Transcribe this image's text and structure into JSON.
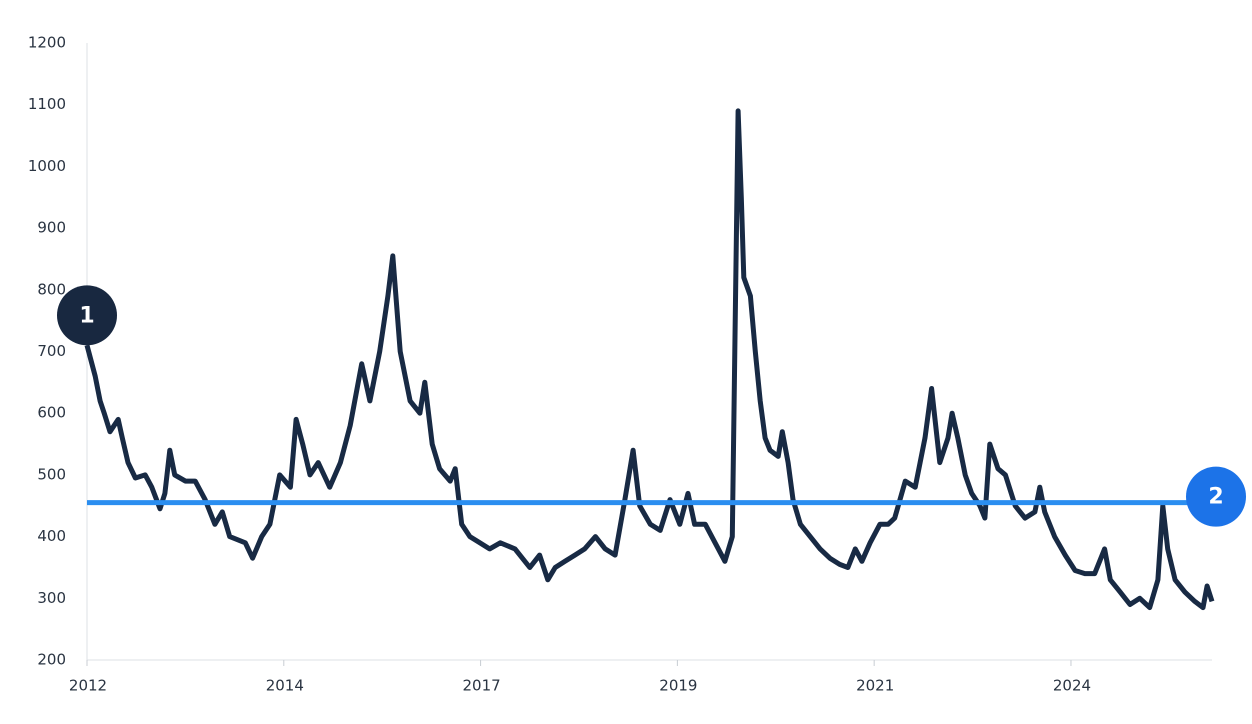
{
  "chart_data": {
    "type": "line",
    "x": [
      2012.0,
      2012.1,
      2012.16,
      2012.21,
      2012.28,
      2012.38,
      2012.43,
      2012.5,
      2012.59,
      2012.71,
      2012.79,
      2012.89,
      2012.95,
      2013.01,
      2013.07,
      2013.2,
      2013.32,
      2013.44,
      2013.56,
      2013.65,
      2013.74,
      2013.93,
      2014.02,
      2014.13,
      2014.23,
      2014.35,
      2014.48,
      2014.55,
      2014.63,
      2014.72,
      2014.82,
      2014.96,
      2015.09,
      2015.21,
      2015.35,
      2015.45,
      2015.57,
      2015.67,
      2015.73,
      2015.82,
      2015.94,
      2016.06,
      2016.12,
      2016.21,
      2016.3,
      2016.43,
      2016.49,
      2016.57,
      2016.67,
      2016.79,
      2016.91,
      2017.04,
      2017.22,
      2017.4,
      2017.52,
      2017.62,
      2017.71,
      2017.83,
      2017.95,
      2018.07,
      2018.2,
      2018.32,
      2018.44,
      2018.56,
      2018.66,
      2018.74,
      2018.87,
      2018.99,
      2019.11,
      2019.23,
      2019.33,
      2019.41,
      2019.54,
      2019.66,
      2019.78,
      2019.87,
      2019.9,
      2019.94,
      2019.98,
      2020.01,
      2020.09,
      2020.15,
      2020.21,
      2020.27,
      2020.33,
      2020.43,
      2020.48,
      2020.55,
      2020.61,
      2020.7,
      2020.82,
      2020.94,
      2021.06,
      2021.18,
      2021.28,
      2021.37,
      2021.45,
      2021.55,
      2021.67,
      2021.77,
      2021.85,
      2021.98,
      2022.1,
      2022.16,
      2022.22,
      2022.3,
      2022.4,
      2022.5,
      2022.55,
      2022.62,
      2022.71,
      2022.79,
      2022.89,
      2022.95,
      2023.01,
      2023.11,
      2023.2,
      2023.32,
      2023.44,
      2023.56,
      2023.62,
      2023.68,
      2023.8,
      2023.93,
      2024.05,
      2024.17,
      2024.29,
      2024.41,
      2024.48,
      2024.6,
      2024.72,
      2024.84,
      2024.96,
      2025.06,
      2025.12,
      2025.18,
      2025.27,
      2025.39,
      2025.51,
      2025.61,
      2025.66,
      2025.72
    ],
    "series": [
      {
        "color": "#182a44",
        "values": [
          710,
          660,
          620,
          600,
          570,
          590,
          560,
          520,
          495,
          500,
          480,
          445,
          470,
          540,
          500,
          490,
          490,
          460,
          420,
          440,
          400,
          390,
          365,
          400,
          420,
          500,
          480,
          590,
          550,
          500,
          520,
          480,
          520,
          580,
          680,
          620,
          700,
          790,
          855,
          700,
          620,
          600,
          650,
          550,
          510,
          490,
          510,
          420,
          400,
          390,
          380,
          390,
          380,
          350,
          370,
          330,
          350,
          360,
          370,
          380,
          400,
          380,
          370,
          460,
          540,
          450,
          420,
          410,
          460,
          420,
          470,
          420,
          420,
          390,
          360,
          400,
          700,
          1090,
          950,
          820,
          790,
          700,
          620,
          560,
          540,
          530,
          570,
          520,
          460,
          420,
          400,
          380,
          365,
          355,
          350,
          380,
          360,
          390,
          420,
          420,
          430,
          490,
          480,
          520,
          560,
          640,
          520,
          560,
          600,
          560,
          500,
          470,
          450,
          430,
          550,
          510,
          500,
          450,
          430,
          440,
          480,
          440,
          400,
          370,
          345,
          340,
          340,
          380,
          330,
          310,
          290,
          300,
          285,
          330,
          450,
          380,
          330,
          310,
          295,
          285,
          320,
          295
        ]
      }
    ],
    "xlim": [
      2012,
      2025.72
    ],
    "xticks": [
      2012,
      {
        "value": 2014.4,
        "label": "2014"
      },
      {
        "value": 2016.8,
        "label": "2017"
      },
      {
        "value": 2019.2,
        "label": "2019"
      },
      {
        "value": 2021.6,
        "label": "2021"
      },
      2024
    ],
    "ylim": [
      200,
      1200
    ],
    "yticks": [
      200,
      300,
      400,
      500,
      600,
      700,
      800,
      900,
      1000,
      1100,
      1200
    ],
    "reference_line": {
      "value": 455,
      "color": "#2b8ef0",
      "label": "2",
      "badge_color": "#1c73e8"
    },
    "start_badge": {
      "label": "1",
      "color": "#182840"
    }
  }
}
